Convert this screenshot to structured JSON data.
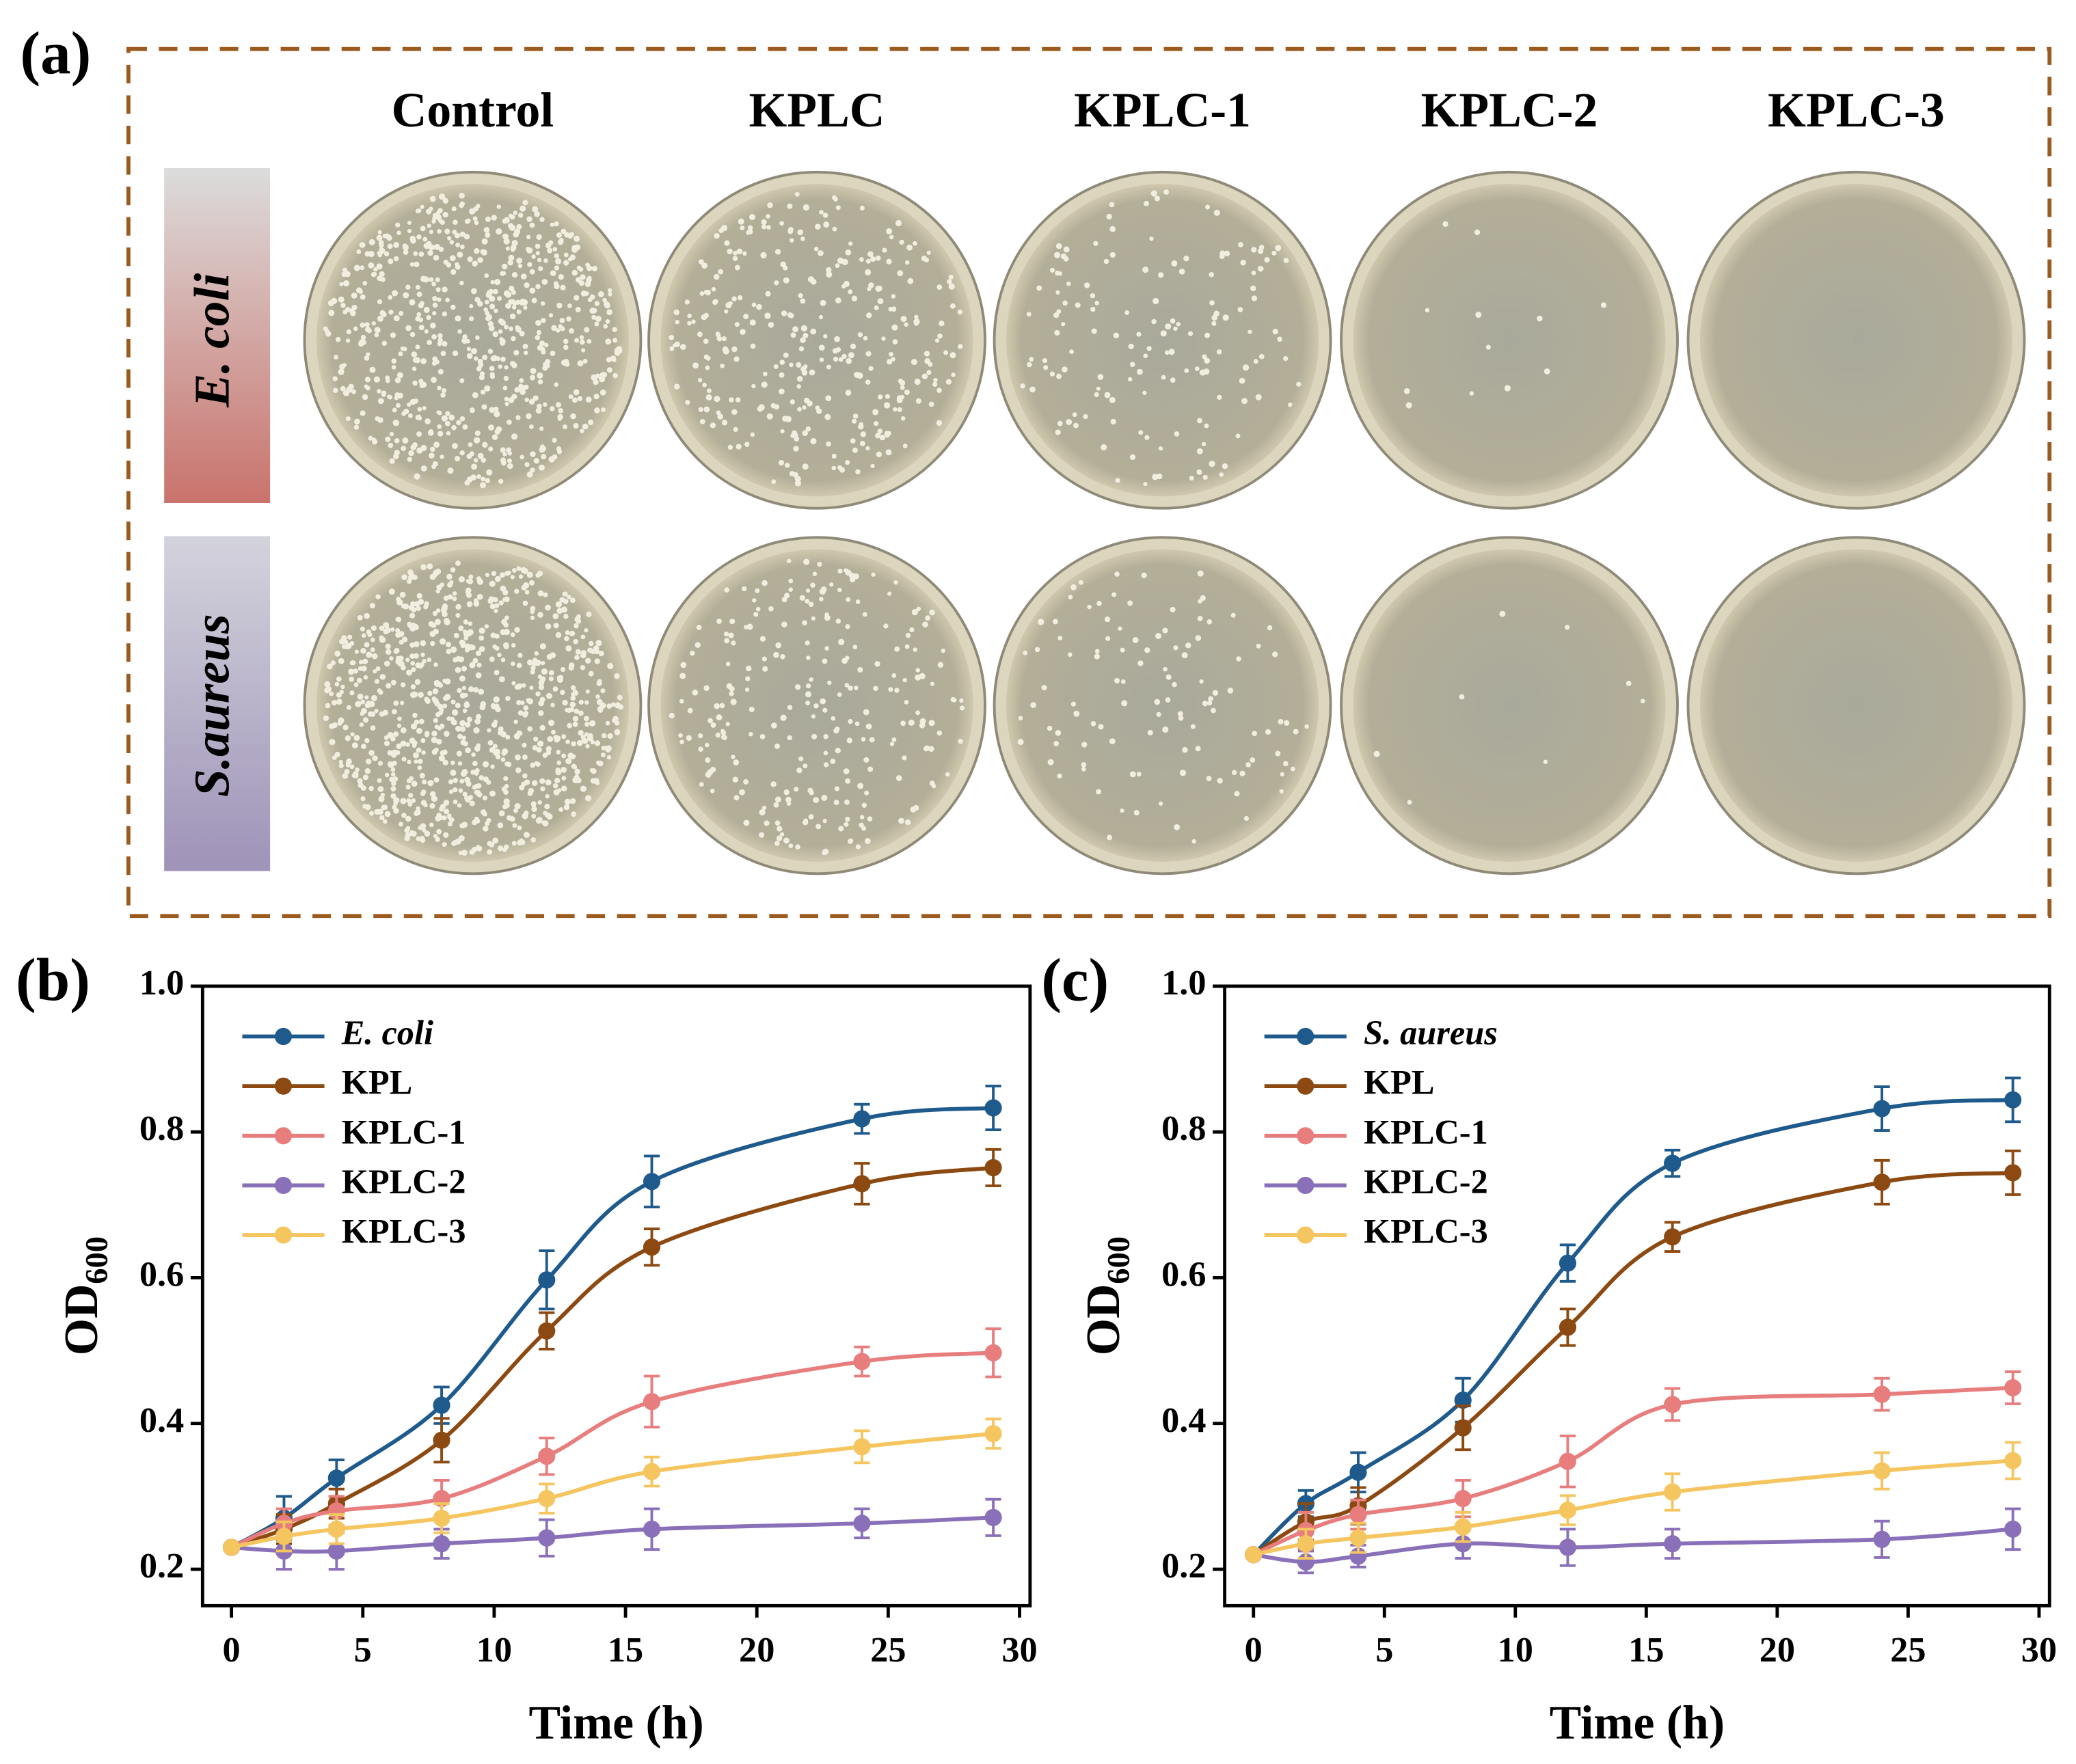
{
  "figure_a": {
    "label": "(a)",
    "columns": [
      "Control",
      "KPLC",
      "KPLC-1",
      "KPLC-2",
      "KPLC-3"
    ],
    "rows": [
      "E. coli",
      "S.aureus"
    ]
  },
  "chart_data": [
    {
      "type": "line",
      "panel_label": "(b)",
      "xlabel": "Time (h)",
      "ylabel": "OD",
      "ylabel_subscript": "600",
      "x": [
        0,
        2,
        4,
        8,
        12,
        16,
        24,
        29
      ],
      "xlim": [
        -1.1,
        30.4
      ],
      "xticks": [
        0,
        5,
        10,
        15,
        20,
        25,
        30
      ],
      "ylim": [
        0.15,
        1.0
      ],
      "yticks": [
        0.2,
        0.4,
        0.6,
        0.8,
        {
          "value": 1.0,
          "label": "1.0"
        }
      ],
      "legend": "upper left",
      "series": [
        {
          "name": "E. coli",
          "italic": true,
          "color": "#1f5a8c",
          "values": [
            0.23,
            0.27,
            0.325,
            0.425,
            0.597,
            0.732,
            0.818,
            0.833
          ],
          "errors": [
            0,
            0.03,
            0.025,
            0.025,
            0.04,
            0.035,
            0.02,
            0.03
          ]
        },
        {
          "name": "KPL",
          "color": "#8c4a12",
          "values": [
            0.23,
            0.255,
            0.29,
            0.377,
            0.527,
            0.642,
            0.729,
            0.751
          ],
          "errors": [
            0,
            0.02,
            0.02,
            0.03,
            0.025,
            0.025,
            0.028,
            0.025
          ]
        },
        {
          "name": "KPLC-1",
          "color": "#e87d7d",
          "values": [
            0.23,
            0.263,
            0.28,
            0.297,
            0.355,
            0.43,
            0.485,
            0.497
          ],
          "errors": [
            0,
            0.02,
            0.02,
            0.025,
            0.025,
            0.035,
            0.02,
            0.033
          ]
        },
        {
          "name": "KPLC-2",
          "color": "#8a70b8",
          "values": [
            0.23,
            0.225,
            0.225,
            0.235,
            0.243,
            0.255,
            0.263,
            0.271
          ],
          "errors": [
            0,
            0.025,
            0.025,
            0.02,
            0.025,
            0.028,
            0.02,
            0.025
          ]
        },
        {
          "name": "KPLC-3",
          "color": "#f5c560",
          "values": [
            0.23,
            0.245,
            0.255,
            0.27,
            0.297,
            0.334,
            0.368,
            0.386
          ],
          "errors": [
            0,
            0.02,
            0.02,
            0.02,
            0.02,
            0.02,
            0.022,
            0.02
          ]
        }
      ]
    },
    {
      "type": "line",
      "panel_label": "(c)",
      "xlabel": "Time (h)",
      "ylabel": "OD",
      "ylabel_subscript": "600",
      "x": [
        0,
        2,
        4,
        8,
        12,
        16,
        24,
        29
      ],
      "xlim": [
        -1.1,
        30.4
      ],
      "xticks": [
        0,
        5,
        10,
        15,
        20,
        25,
        30
      ],
      "ylim": [
        0.15,
        1.0
      ],
      "yticks": [
        0.2,
        0.4,
        0.6,
        0.8,
        {
          "value": 1.0,
          "label": "1.0"
        }
      ],
      "legend": "upper left",
      "series": [
        {
          "name": "S. aureus",
          "italic": true,
          "color": "#1f5a8c",
          "values": [
            0.22,
            0.29,
            0.333,
            0.432,
            0.62,
            0.757,
            0.832,
            0.844
          ],
          "errors": [
            0,
            0.018,
            0.027,
            0.03,
            0.025,
            0.018,
            0.03,
            0.03
          ]
        },
        {
          "name": "KPL",
          "color": "#8c4a12",
          "values": [
            0.22,
            0.265,
            0.287,
            0.394,
            0.532,
            0.656,
            0.731,
            0.744
          ],
          "errors": [
            0,
            0.025,
            0.025,
            0.03,
            0.025,
            0.02,
            0.03,
            0.03
          ]
        },
        {
          "name": "KPLC-1",
          "color": "#e87d7d",
          "values": [
            0.22,
            0.253,
            0.275,
            0.297,
            0.348,
            0.426,
            0.44,
            0.449
          ],
          "errors": [
            0,
            0.025,
            0.02,
            0.025,
            0.035,
            0.022,
            0.022,
            0.022
          ]
        },
        {
          "name": "KPLC-2",
          "color": "#8a70b8",
          "values": [
            0.22,
            0.21,
            0.218,
            0.235,
            0.23,
            0.235,
            0.241,
            0.255
          ],
          "errors": [
            0,
            0.015,
            0.015,
            0.02,
            0.025,
            0.02,
            0.025,
            0.028
          ]
        },
        {
          "name": "KPLC-3",
          "color": "#f5c560",
          "values": [
            0.22,
            0.235,
            0.243,
            0.258,
            0.281,
            0.306,
            0.335,
            0.349
          ],
          "errors": [
            0,
            0.02,
            0.02,
            0.02,
            0.02,
            0.025,
            0.025,
            0.025
          ]
        }
      ]
    }
  ]
}
